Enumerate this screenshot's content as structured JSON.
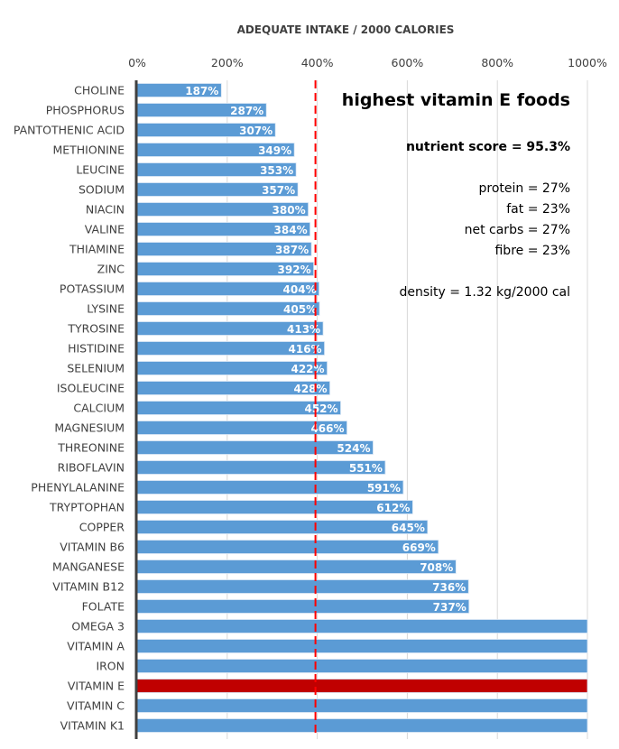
{
  "chart_data": {
    "type": "bar",
    "orientation": "horizontal",
    "title": "ADEQUATE INTAKE / 2000 CALORIES",
    "xlabel": "",
    "ylabel": "",
    "xlim": [
      0,
      1000
    ],
    "x_ticks": [
      0,
      200,
      400,
      600,
      800,
      1000
    ],
    "x_tick_labels": [
      "0%",
      "200%",
      "400%",
      "600%",
      "800%",
      "1000%"
    ],
    "x_axis_position": "top",
    "grid": true,
    "reference_line": {
      "value": 400,
      "style": "dashed",
      "color": "#ff0000"
    },
    "bar_color": "#5b9bd5",
    "highlight_color": "#c00000",
    "highlight_category": "VITAMIN E",
    "categories": [
      "CHOLINE",
      "PHOSPHORUS",
      "PANTOTHENIC ACID",
      "METHIONINE",
      "LEUCINE",
      "SODIUM",
      "NIACIN",
      "VALINE",
      "THIAMINE",
      "ZINC",
      "POTASSIUM",
      "LYSINE",
      "TYROSINE",
      "HISTIDINE",
      "SELENIUM",
      "ISOLEUCINE",
      "CALCIUM",
      "MAGNESIUM",
      "THREONINE",
      "RIBOFLAVIN",
      "PHENYLALANINE",
      "TRYPTOPHAN",
      "COPPER",
      "VITAMIN B6",
      "MANGANESE",
      "VITAMIN B12",
      "FOLATE",
      "OMEGA 3",
      "VITAMIN A",
      "IRON",
      "VITAMIN E",
      "VITAMIN C",
      "VITAMIN K1"
    ],
    "values": [
      187,
      287,
      307,
      349,
      353,
      357,
      380,
      384,
      387,
      392,
      404,
      405,
      413,
      416,
      422,
      428,
      452,
      466,
      524,
      551,
      591,
      612,
      645,
      669,
      708,
      736,
      737,
      1000,
      1000,
      1000,
      1000,
      1000,
      1000
    ],
    "data_labels": [
      "187%",
      "287%",
      "307%",
      "349%",
      "353%",
      "357%",
      "380%",
      "384%",
      "387%",
      "392%",
      "404%",
      "405%",
      "413%",
      "416%",
      "422%",
      "428%",
      "452%",
      "466%",
      "524%",
      "551%",
      "591%",
      "612%",
      "645%",
      "669%",
      "708%",
      "736%",
      "737%",
      "",
      "",
      "",
      "",
      "",
      ""
    ],
    "annotations": {
      "title": "highest vitamin E foods",
      "nutrient_score": "nutrient score = 95.3%",
      "macros": [
        "protein = 27%",
        "fat = 23%",
        "net carbs = 27%",
        "fibre = 23%"
      ],
      "density": "density = 1.32 kg/2000 cal"
    }
  }
}
